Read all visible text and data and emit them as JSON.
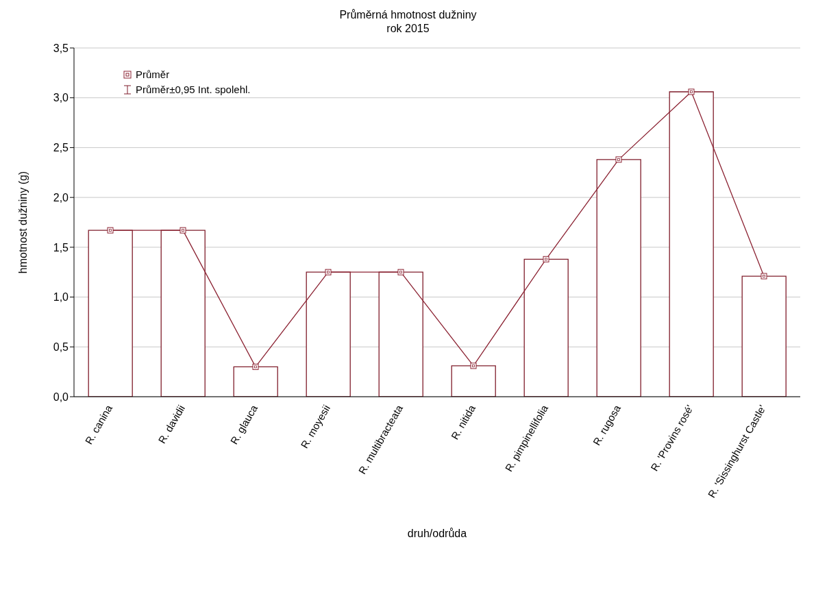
{
  "chart_data": {
    "type": "bar",
    "title": "Průměrná hmotnost dužniny",
    "subtitle": "rok 2015",
    "xlabel": "druh/odrůda",
    "ylabel": "hmotnost dužniny (g)",
    "categories": [
      "R. canina",
      "R. davidii",
      "R. glauca",
      "R. moyesii",
      "R. multibracteata",
      "R. nitida",
      "R. pimpinellifolia",
      "R. rugosa",
      "R. 'Provins rosé'",
      "R. 'Sissinghurst Castle'"
    ],
    "series": [
      {
        "name": "Průměr±0,95 Int. spolehl.",
        "color": "#7f1d2b",
        "values": [
          1.67,
          1.67,
          0.3,
          1.25,
          1.25,
          0.31,
          1.38,
          2.38,
          3.06,
          1.21
        ]
      },
      {
        "name": "Průměr",
        "type": "line",
        "color": "#8b2232",
        "marker": "square",
        "values": [
          1.67,
          1.67,
          0.3,
          1.25,
          1.25,
          0.31,
          1.38,
          2.38,
          3.06,
          1.21
        ]
      }
    ],
    "ylim": [
      0,
      3.5
    ],
    "yticks": [
      {
        "value": 0,
        "label": "0,0"
      },
      {
        "value": 0.5,
        "label": "0,5"
      },
      {
        "value": 1,
        "label": "1,0"
      },
      {
        "value": 1.5,
        "label": "1,5"
      },
      {
        "value": 2,
        "label": "2,0"
      },
      {
        "value": 2.5,
        "label": "2,5"
      },
      {
        "value": 3,
        "label": "3,0"
      },
      {
        "value": 3.5,
        "label": "3,5"
      }
    ],
    "grid": "y",
    "legend": "top left"
  }
}
